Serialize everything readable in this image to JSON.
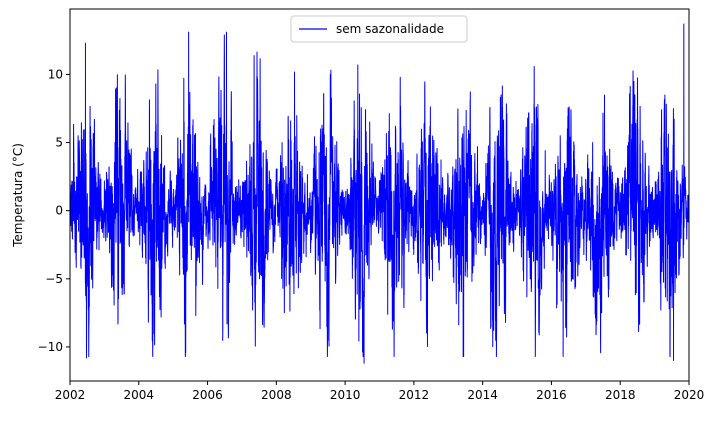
{
  "chart_data": {
    "type": "line",
    "title": "",
    "xlabel": "",
    "ylabel": "Temperatura (°C)",
    "xlim": [
      2002,
      2020
    ],
    "ylim": [
      -12.5,
      14.8
    ],
    "xticks": [
      2002,
      2004,
      2006,
      2008,
      2010,
      2012,
      2014,
      2016,
      2018,
      2020
    ],
    "yticks": [
      -10,
      -5,
      0,
      5,
      10
    ],
    "grid": false,
    "legend_position": "top-center",
    "series": [
      {
        "name": "sem sazonalidade",
        "color": "#0000ff",
        "sampling": "daily, approx. 2002-01-01 to 2019-12-31 (read visually)",
        "observed_range": [
          -11.2,
          13.7
        ],
        "notable_extremes": [
          {
            "x": 2002.45,
            "y": 12.3
          },
          {
            "x": 2002.48,
            "y": -10.8
          },
          {
            "x": 2005.45,
            "y": 13.1
          },
          {
            "x": 2006.55,
            "y": 13.1
          },
          {
            "x": 2010.55,
            "y": -11.2
          },
          {
            "x": 2019.55,
            "y": -11.0
          },
          {
            "x": 2019.85,
            "y": 13.7
          }
        ]
      }
    ]
  }
}
